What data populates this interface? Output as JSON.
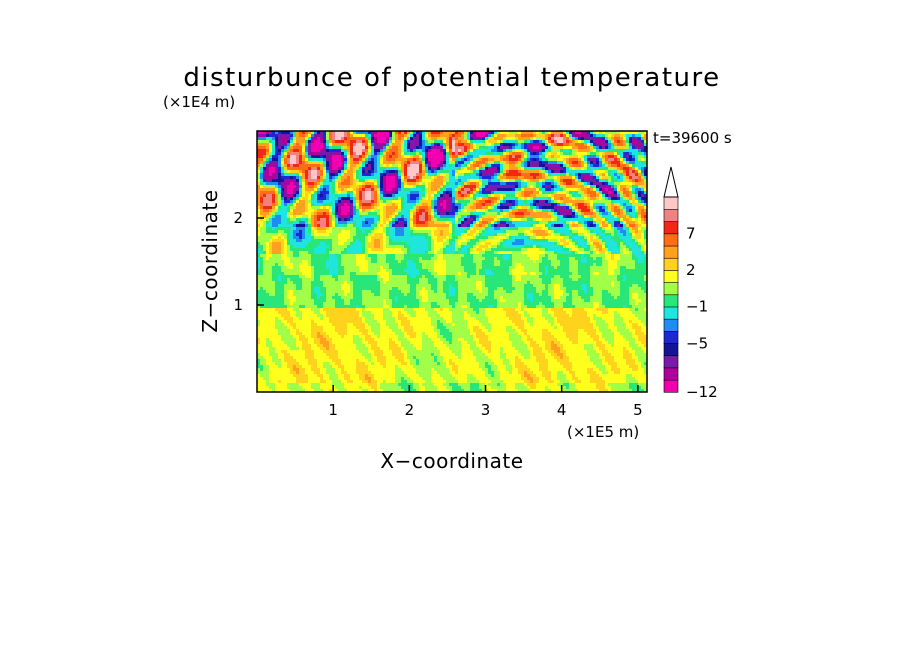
{
  "chart_data": {
    "type": "heatmap",
    "title": "disturbunce of potential temperature",
    "time_label": "t=39600 s",
    "xlabel": "X−coordinate",
    "ylabel": "Z−coordinate",
    "x_unit": "(×1E5 m)",
    "y_unit": "(×1E4 m)",
    "xlim": [
      0,
      5.12
    ],
    "ylim": [
      0,
      3.0
    ],
    "x_ticks": [
      "1",
      "2",
      "3",
      "4",
      "5"
    ],
    "y_ticks": [
      "1",
      "2"
    ],
    "colorbar": {
      "levels": [
        -12,
        -10,
        -8,
        -6,
        -5,
        -4,
        -3,
        -1,
        0,
        1,
        2,
        3,
        5,
        7,
        9,
        11
      ],
      "labels": [
        "−12",
        "−5",
        "−1",
        "2",
        "7"
      ],
      "colors": [
        "#f000b0",
        "#b0009c",
        "#7a1aa8",
        "#141496",
        "#1e28d2",
        "#1e8cf0",
        "#1ee6dc",
        "#28e678",
        "#a0ff46",
        "#ffff1e",
        "#ffd21e",
        "#ffa01e",
        "#ff6e14",
        "#f02814",
        "#f08282",
        "#ffc8c8"
      ],
      "extend": "max"
    },
    "bands": [
      {
        "z_range": [
          0,
          0.95
        ],
        "dominant": "yellow / light orange (0 to 3)"
      },
      {
        "z_range": [
          0.95,
          1.6
        ],
        "dominant": "green (−1 to 1)"
      },
      {
        "z_range": [
          1.6,
          3.0
        ],
        "dominant": "alternating warm (3 to 9) and cold (−5 to −12) cells"
      }
    ]
  }
}
